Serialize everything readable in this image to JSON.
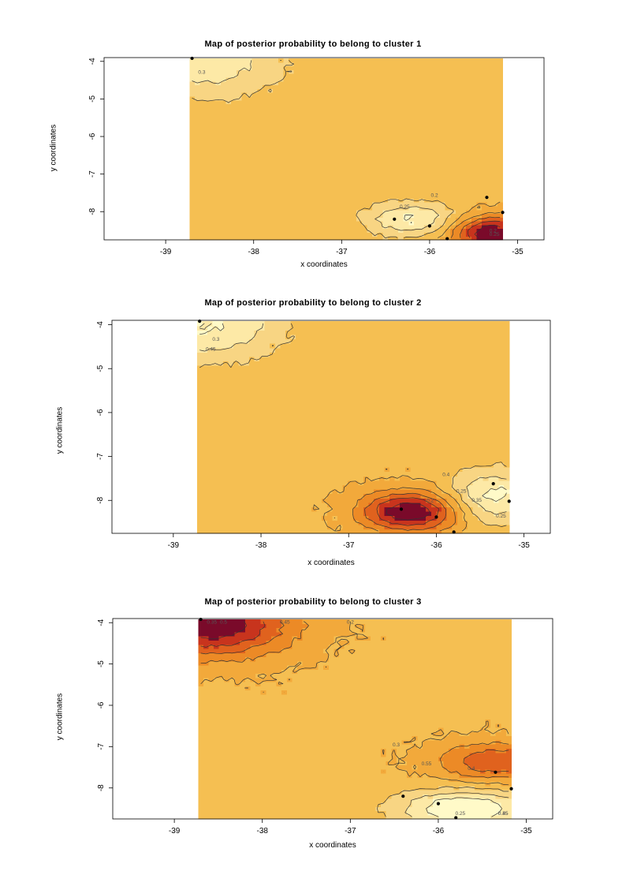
{
  "chart_data": [
    {
      "type": "heatmap",
      "title": "Map of posterior probability to belong to cluster  1",
      "xlabel": "x coordinates",
      "ylabel": "y coordinates",
      "xlim": [
        -39.7,
        -34.7
      ],
      "ylim": [
        -8.75,
        -3.9
      ],
      "x_ticks": [
        -39,
        -38,
        -37,
        -36,
        -35
      ],
      "x_tick_labels": [
        "-39",
        "-38",
        "-37",
        "-36",
        "-35"
      ],
      "y_ticks": [
        -4,
        -5,
        -6,
        -7,
        -8
      ],
      "y_tick_labels": [
        "-4",
        "-5",
        "-6",
        "-7",
        "-8"
      ],
      "data_extent": {
        "x": [
          -38.73,
          -35.17
        ],
        "y": [
          -8.75,
          -3.92
        ]
      },
      "color_scale": [
        "#fffac8",
        "#fde9a6",
        "#f8d583",
        "#f5bf52",
        "#f2a93b",
        "#ec8a26",
        "#e0621e",
        "#c8341d",
        "#7a0a2a"
      ],
      "contour_labels": [
        "0.2",
        "0.25",
        "0.3",
        "0.25",
        "0.2"
      ],
      "points": [
        {
          "x": -38.7,
          "y": -3.92
        },
        {
          "x": -36.4,
          "y": -8.2
        },
        {
          "x": -36.0,
          "y": -8.38
        },
        {
          "x": -35.8,
          "y": -8.72
        },
        {
          "x": -35.35,
          "y": -7.62
        },
        {
          "x": -35.17,
          "y": -8.02
        }
      ],
      "hotspots": [
        {
          "x": -35.3,
          "y": -8.55,
          "level": 1.0,
          "sx": 0.45,
          "sy": 0.45
        },
        {
          "x": -36.2,
          "y": -8.2,
          "level": -0.55,
          "sx": 0.55,
          "sy": 0.45
        },
        {
          "x": -38.55,
          "y": -4.1,
          "level": -0.45,
          "sx": 0.9,
          "sy": 0.9
        }
      ]
    },
    {
      "type": "heatmap",
      "title": "Map of posterior probability to belong to cluster  2",
      "xlabel": "x coordinates",
      "ylabel": "y coordinates",
      "xlim": [
        -39.7,
        -34.7
      ],
      "ylim": [
        -8.75,
        -3.9
      ],
      "x_ticks": [
        -39,
        -38,
        -37,
        -36,
        -35
      ],
      "x_tick_labels": [
        "-39",
        "-38",
        "-37",
        "-36",
        "-35"
      ],
      "y_ticks": [
        -4,
        -5,
        -6,
        -7,
        -8
      ],
      "y_tick_labels": [
        "-4",
        "-5",
        "-6",
        "-7",
        "-8"
      ],
      "data_extent": {
        "x": [
          -38.73,
          -35.17
        ],
        "y": [
          -8.75,
          -3.92
        ]
      },
      "color_scale": [
        "#fffac8",
        "#fde9a6",
        "#f8d583",
        "#f5bf52",
        "#f2a93b",
        "#ec8a26",
        "#e0621e",
        "#c8341d",
        "#7a0a2a"
      ],
      "contour_labels": [
        "0.2",
        "0.25",
        "0.3",
        "0.35",
        "0.4",
        "0.45",
        "0.25"
      ],
      "points": [
        {
          "x": -38.7,
          "y": -3.92
        },
        {
          "x": -36.4,
          "y": -8.2
        },
        {
          "x": -36.0,
          "y": -8.38
        },
        {
          "x": -35.8,
          "y": -8.72
        },
        {
          "x": -35.35,
          "y": -7.62
        },
        {
          "x": -35.17,
          "y": -8.02
        }
      ],
      "hotspots": [
        {
          "x": -36.3,
          "y": -8.25,
          "level": 1.0,
          "sx": 0.55,
          "sy": 0.45
        },
        {
          "x": -35.35,
          "y": -7.9,
          "level": -0.6,
          "sx": 0.5,
          "sy": 0.6
        },
        {
          "x": -38.6,
          "y": -4.0,
          "level": -0.55,
          "sx": 0.85,
          "sy": 0.8
        }
      ]
    },
    {
      "type": "heatmap",
      "title": "Map of posterior probability to belong to cluster  3",
      "xlabel": "x coordinates",
      "ylabel": "y coordinates",
      "xlim": [
        -39.7,
        -34.7
      ],
      "ylim": [
        -8.75,
        -3.9
      ],
      "x_ticks": [
        -39,
        -38,
        -37,
        -36,
        -35
      ],
      "x_tick_labels": [
        "-39",
        "-38",
        "-37",
        "-36",
        "-35"
      ],
      "y_ticks": [
        -4,
        -5,
        -6,
        -7,
        -8
      ],
      "y_tick_labels": [
        "-4",
        "-5",
        "-6",
        "-7",
        "-8"
      ],
      "data_extent": {
        "x": [
          -38.73,
          -35.17
        ],
        "y": [
          -8.75,
          -3.92
        ]
      },
      "color_scale": [
        "#fffac8",
        "#fde9a6",
        "#f8d583",
        "#f5bf52",
        "#f2a93b",
        "#ec8a26",
        "#e0621e",
        "#c8341d",
        "#7a0a2a"
      ],
      "contour_labels": [
        "0.35",
        "0.4",
        "0.45",
        "0.5",
        "0.55",
        "0.35",
        "0.45",
        "0.3",
        "0.25",
        "0.2"
      ],
      "points": [
        {
          "x": -38.7,
          "y": -3.92
        },
        {
          "x": -36.4,
          "y": -8.2
        },
        {
          "x": -36.0,
          "y": -8.38
        },
        {
          "x": -35.8,
          "y": -8.72
        },
        {
          "x": -35.35,
          "y": -7.62
        },
        {
          "x": -35.17,
          "y": -8.02
        }
      ],
      "hotspots": [
        {
          "x": -38.6,
          "y": -4.05,
          "level": 1.0,
          "sx": 0.9,
          "sy": 0.75
        },
        {
          "x": -35.35,
          "y": -7.35,
          "level": 0.6,
          "sx": 0.65,
          "sy": 0.45
        },
        {
          "x": -35.7,
          "y": -8.5,
          "level": -0.75,
          "sx": 0.75,
          "sy": 0.45
        }
      ]
    }
  ]
}
